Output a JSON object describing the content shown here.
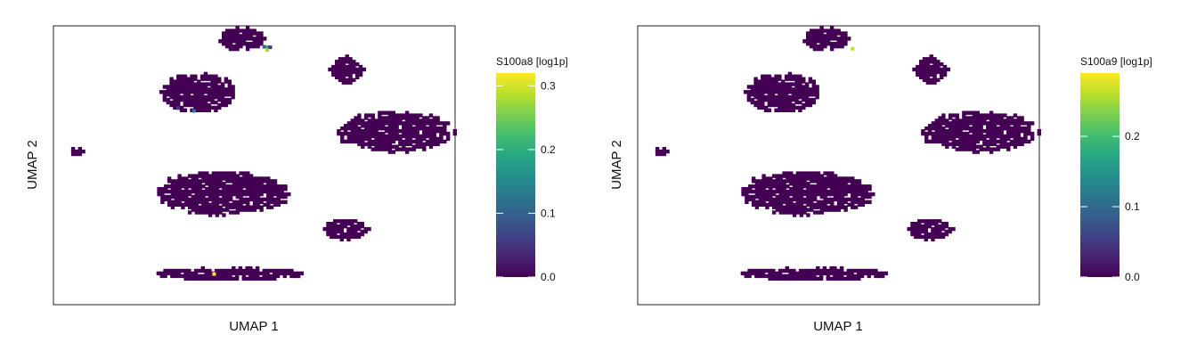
{
  "chart_data": [
    {
      "type": "hexbin",
      "xlabel": "UMAP 1",
      "ylabel": "UMAP 2",
      "colorbar": {
        "title": "S100a8 [log1p]",
        "range": [
          0.0,
          0.32
        ],
        "ticks": [
          0.0,
          0.1,
          0.2,
          0.3
        ],
        "tick_labels": [
          "0.0",
          "0.1",
          "0.2",
          "0.3"
        ],
        "colormap": "viridis"
      },
      "xlim": [
        0,
        100
      ],
      "ylim": [
        0,
        100
      ],
      "clusters": [
        {
          "id": "top-center",
          "center": [
            47,
            95
          ],
          "spread": [
            5.5,
            4
          ],
          "shape": "ellipse"
        },
        {
          "id": "upper-left",
          "center": [
            36,
            76
          ],
          "spread": [
            9,
            7
          ],
          "shape": "blob"
        },
        {
          "id": "upper-right-diamond",
          "center": [
            73,
            84
          ],
          "spread": [
            4.5,
            5.5
          ],
          "shape": "diamond"
        },
        {
          "id": "right-arm",
          "center": [
            85,
            62
          ],
          "spread": [
            14,
            7
          ],
          "shape": "blob"
        },
        {
          "id": "small-left",
          "center": [
            6,
            55
          ],
          "spread": [
            1.5,
            1.5
          ],
          "shape": "ellipse"
        },
        {
          "id": "middle",
          "center": [
            42,
            40
          ],
          "spread": [
            16,
            7.5
          ],
          "shape": "ellipse"
        },
        {
          "id": "lower-right-small",
          "center": [
            73,
            27
          ],
          "spread": [
            5.5,
            3.5
          ],
          "shape": "blob"
        },
        {
          "id": "bottom-streak",
          "center": [
            44,
            11
          ],
          "spread": [
            17,
            2
          ],
          "shape": "streak"
        }
      ],
      "highlighted_points": [
        {
          "x": 53.5,
          "y": 92.3,
          "value": 0.15
        },
        {
          "x": 52.5,
          "y": 92.5,
          "value": 0.1
        },
        {
          "x": 54.0,
          "y": 92.3,
          "value": 0.05
        },
        {
          "x": 53.2,
          "y": 91.3,
          "value": 0.28
        },
        {
          "x": 35.0,
          "y": 69.5,
          "value": 0.12
        },
        {
          "x": 40.0,
          "y": 11.0,
          "value": 0.32
        },
        {
          "x": 31.0,
          "y": 70.5,
          "value": 0.06
        }
      ]
    },
    {
      "type": "hexbin",
      "xlabel": "UMAP 1",
      "ylabel": "UMAP 2",
      "colorbar": {
        "title": "S100a9 [log1p]",
        "range": [
          0.0,
          0.29
        ],
        "ticks": [
          0.0,
          0.1,
          0.2
        ],
        "tick_labels": [
          "0.0",
          "0.1",
          "0.2"
        ],
        "colormap": "viridis"
      },
      "xlim": [
        0,
        100
      ],
      "ylim": [
        0,
        100
      ],
      "clusters": [
        {
          "id": "top-center",
          "center": [
            47,
            95
          ],
          "spread": [
            5.5,
            4
          ],
          "shape": "ellipse"
        },
        {
          "id": "upper-left",
          "center": [
            36,
            76
          ],
          "spread": [
            9,
            7
          ],
          "shape": "blob"
        },
        {
          "id": "upper-right-diamond",
          "center": [
            73,
            84
          ],
          "spread": [
            4.5,
            5.5
          ],
          "shape": "diamond"
        },
        {
          "id": "right-arm",
          "center": [
            85,
            62
          ],
          "spread": [
            14,
            7
          ],
          "shape": "blob"
        },
        {
          "id": "small-left",
          "center": [
            6,
            55
          ],
          "spread": [
            1.5,
            1.5
          ],
          "shape": "ellipse"
        },
        {
          "id": "middle",
          "center": [
            42,
            40
          ],
          "spread": [
            16,
            7.5
          ],
          "shape": "ellipse"
        },
        {
          "id": "lower-right-small",
          "center": [
            73,
            27
          ],
          "spread": [
            5.5,
            3.5
          ],
          "shape": "blob"
        },
        {
          "id": "bottom-streak",
          "center": [
            44,
            11
          ],
          "spread": [
            17,
            2
          ],
          "shape": "streak"
        }
      ],
      "highlighted_points": [
        {
          "x": 53.5,
          "y": 91.8,
          "value": 0.26
        }
      ]
    }
  ]
}
